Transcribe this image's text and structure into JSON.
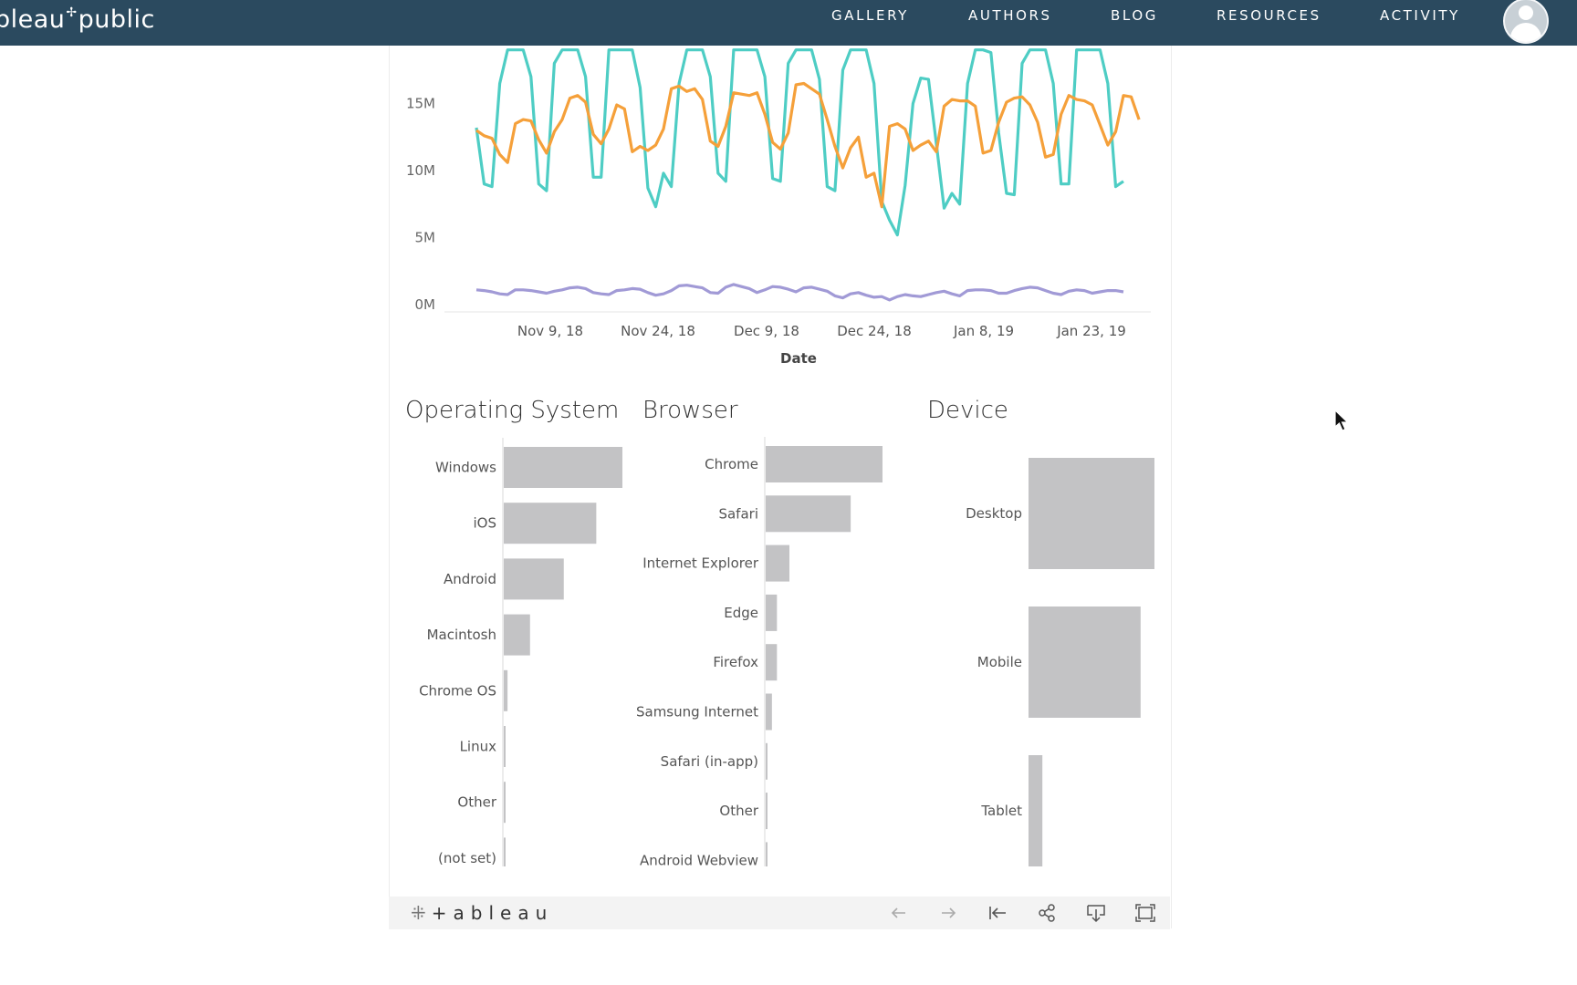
{
  "app": {
    "logo_text": "bleau",
    "logo_text2": "public",
    "nav": [
      "GALLERY",
      "AUTHORS",
      "BLOG",
      "RESOURCES",
      "ACTIVITY"
    ]
  },
  "line_chart": {
    "y_ticks": [
      "15M",
      "10M",
      "5M",
      "0M"
    ],
    "x_ticks": [
      "Nov 9, 18",
      "Nov 24, 18",
      "Dec 9, 18",
      "Dec 24, 18",
      "Jan 8, 19",
      "Jan 23, 19"
    ],
    "x_label": "Date"
  },
  "panels": {
    "os_title": "Operating System",
    "browser_title": "Browser",
    "device_title": "Device"
  },
  "chart_data": [
    {
      "type": "line",
      "xlabel": "Date",
      "ylabel": "",
      "ylim": [
        0,
        19000000
      ],
      "x_start": "Oct 31, 18",
      "x_end": "Jan 31, 19",
      "colors": [
        "#4ecdc4",
        "#f5a03a",
        "#a19ad6"
      ],
      "series": [
        {
          "values": [
            13.2,
            9,
            8.8,
            16.5,
            19,
            19,
            19,
            17,
            9,
            8.5,
            18,
            19,
            19,
            19,
            17,
            9.5,
            9.5,
            19,
            19,
            19,
            19,
            16.2,
            8.7,
            7.3,
            9.8,
            8.8,
            16.5,
            19,
            19,
            19,
            17,
            9.8,
            9.2,
            19,
            19,
            19,
            19,
            17,
            9.4,
            9.2,
            18,
            19,
            19,
            19,
            16.8,
            8.8,
            8.5,
            17.5,
            19,
            19,
            19,
            16.5,
            7.7,
            6.3,
            5.2,
            8.9,
            15,
            16.9,
            16.8,
            12,
            7.2,
            8.3,
            7.5,
            16.5,
            19,
            19,
            18.8,
            12.8,
            8.3,
            8.2,
            18,
            19,
            19,
            19,
            16.5,
            9,
            9,
            19,
            19,
            19,
            19,
            16.5,
            8.8,
            9.2
          ]
        },
        {
          "values": [
            13,
            12.6,
            12.4,
            11.2,
            10.6,
            13.5,
            13.8,
            13.7,
            12.3,
            11.3,
            12.9,
            13.8,
            15.4,
            15.6,
            15.1,
            12.7,
            12,
            13.1,
            14.9,
            14.6,
            11.4,
            11.8,
            11.5,
            11.9,
            13.1,
            16.1,
            16.3,
            15.9,
            16.1,
            15.3,
            12.2,
            11.8,
            13.3,
            15.8,
            15.7,
            15.6,
            15.8,
            14.2,
            12.1,
            11.6,
            12.8,
            16.4,
            16.5,
            16.1,
            15.7,
            13.8,
            11.8,
            10.2,
            11.7,
            12.5,
            9.5,
            9.8,
            7.3,
            13.3,
            13.5,
            13.1,
            11.5,
            11.9,
            12.2,
            11.4,
            14.8,
            15.3,
            15.2,
            15.2,
            14.8,
            11.3,
            11.5,
            13.6,
            15.1,
            15.4,
            15.5,
            14.9,
            13.6,
            11,
            11.2,
            14.2,
            15.6,
            15.3,
            15.2,
            14.9,
            13.4,
            11.9,
            12.9,
            15.6,
            15.5,
            13.8
          ]
        },
        {
          "values": [
            1.1,
            1.05,
            0.95,
            0.8,
            0.75,
            1.1,
            1.1,
            1.05,
            0.95,
            0.85,
            1.0,
            1.1,
            1.25,
            1.3,
            1.2,
            0.9,
            0.8,
            0.75,
            1.05,
            1.1,
            1.2,
            1.15,
            0.9,
            0.7,
            0.8,
            1.05,
            1.4,
            1.45,
            1.35,
            1.25,
            0.9,
            0.85,
            1.3,
            1.5,
            1.35,
            1.2,
            0.9,
            1.1,
            1.35,
            1.3,
            1.15,
            0.95,
            1.25,
            1.3,
            1.15,
            1.0,
            0.65,
            0.5,
            0.8,
            0.9,
            0.7,
            0.55,
            0.6,
            0.35,
            0.6,
            0.75,
            0.65,
            0.6,
            0.75,
            0.9,
            1.0,
            0.8,
            0.65,
            1.05,
            1.1,
            1.1,
            1.05,
            0.85,
            0.85,
            1.05,
            1.2,
            1.3,
            1.25,
            1.05,
            0.85,
            0.75,
            1.0,
            1.1,
            1.05,
            0.85,
            0.95,
            1.05,
            1.05,
            0.95
          ]
        }
      ],
      "x_ticks": [
        "Nov 9, 18",
        "Nov 24, 18",
        "Dec 9, 18",
        "Dec 24, 18",
        "Jan 8, 19",
        "Jan 23, 19"
      ],
      "y_ticks": [
        "15M",
        "10M",
        "5M",
        "0M"
      ],
      "unit": "M"
    },
    {
      "type": "bar",
      "title": "Operating System",
      "categories": [
        "Windows",
        "iOS",
        "Android",
        "Macintosh",
        "Chrome OS",
        "Linux",
        "Other",
        "(not set)"
      ],
      "values": [
        100,
        74,
        48,
        21,
        3,
        0.8,
        0.5,
        0.6
      ],
      "color": "#c3c3c5"
    },
    {
      "type": "bar",
      "title": "Browser",
      "categories": [
        "Chrome",
        "Safari",
        "Internet Explorer",
        "Edge",
        "Firefox",
        "Samsung Internet",
        "Safari (in-app)",
        "Other",
        "Android Webview"
      ],
      "values": [
        100,
        68,
        19,
        9,
        9,
        5,
        0.8,
        0.8,
        0.8
      ],
      "color": "#c3c3c5"
    },
    {
      "type": "bar",
      "title": "Device",
      "categories": [
        "Desktop",
        "Mobile",
        "Tablet"
      ],
      "values": [
        100,
        89,
        11
      ],
      "color": "#c3c3c5"
    }
  ]
}
